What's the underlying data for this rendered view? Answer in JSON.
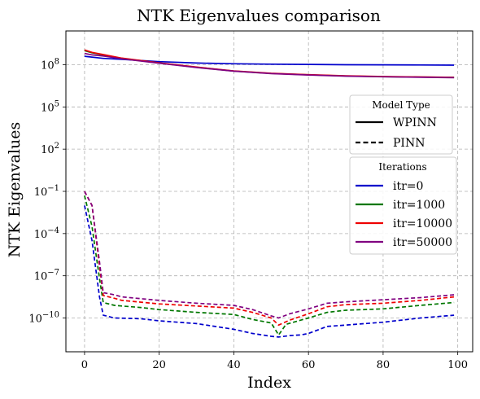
{
  "chart_data": {
    "type": "line",
    "title": "NTK Eigenvalues comparison",
    "xlabel": "Index",
    "ylabel": "NTK Eigenvalues",
    "xlim": [
      -5,
      104
    ],
    "ylim_log10": [
      -12.4,
      10.4
    ],
    "yscale": "log",
    "grid": true,
    "xticks": [
      0,
      20,
      40,
      60,
      80,
      100
    ],
    "yticks": [
      {
        "exp": 8,
        "label": "10^8"
      },
      {
        "exp": 5,
        "label": "10^5"
      },
      {
        "exp": 2,
        "label": "10^2"
      },
      {
        "exp": -1,
        "label": "10^−1"
      },
      {
        "exp": -4,
        "label": "10^−4"
      },
      {
        "exp": -7,
        "label": "10^−7"
      },
      {
        "exp": -10,
        "label": "10^−10"
      }
    ],
    "legends": [
      {
        "title": "Model Type",
        "placement": "right",
        "entries": [
          {
            "label": "WPINN",
            "style": "solid",
            "color": "#000000"
          },
          {
            "label": "PINN",
            "style": "dashed",
            "color": "#000000"
          }
        ]
      },
      {
        "title": "Iterations",
        "placement": "right",
        "entries": [
          {
            "label": "itr=0",
            "color": "#0000cc"
          },
          {
            "label": "itr=1000",
            "color": "#007700"
          },
          {
            "label": "itr=10000",
            "color": "#ee0000"
          },
          {
            "label": "itr=50000",
            "color": "#800080"
          }
        ]
      }
    ],
    "series": [
      {
        "name": "WPINN itr=0",
        "model": "WPINN",
        "iteration": "itr=0",
        "color": "#0000cc",
        "style": "solid",
        "x": [
          0,
          5,
          10,
          20,
          30,
          40,
          50,
          60,
          70,
          80,
          90,
          99
        ],
        "log10_y": [
          8.6,
          8.45,
          8.38,
          8.22,
          8.12,
          8.07,
          8.04,
          8.02,
          8.0,
          7.99,
          7.98,
          7.97
        ]
      },
      {
        "name": "WPINN itr=1000",
        "model": "WPINN",
        "iteration": "itr=1000",
        "color": "#007700",
        "style": "solid",
        "x": [
          0,
          2,
          5,
          10,
          20,
          30,
          40,
          50,
          60,
          70,
          80,
          90,
          99
        ],
        "log10_y": [
          9.0,
          8.85,
          8.7,
          8.45,
          8.12,
          7.82,
          7.55,
          7.38,
          7.28,
          7.2,
          7.15,
          7.12,
          7.1
        ]
      },
      {
        "name": "WPINN itr=10000",
        "model": "WPINN",
        "iteration": "itr=10000",
        "color": "#ee0000",
        "style": "solid",
        "x": [
          0,
          2,
          5,
          10,
          20,
          30,
          40,
          50,
          60,
          70,
          80,
          90,
          99
        ],
        "log10_y": [
          9.05,
          8.88,
          8.72,
          8.47,
          8.13,
          7.83,
          7.56,
          7.39,
          7.29,
          7.21,
          7.16,
          7.13,
          7.1
        ]
      },
      {
        "name": "WPINN itr=50000",
        "model": "WPINN",
        "iteration": "itr=50000",
        "color": "#800080",
        "style": "solid",
        "x": [
          0,
          2,
          5,
          10,
          20,
          30,
          40,
          50,
          60,
          70,
          80,
          90,
          99
        ],
        "log10_y": [
          8.8,
          8.7,
          8.62,
          8.42,
          8.1,
          7.8,
          7.54,
          7.37,
          7.27,
          7.19,
          7.14,
          7.11,
          7.08
        ]
      },
      {
        "name": "PINN itr=0",
        "model": "PINN",
        "iteration": "itr=0",
        "color": "#0000cc",
        "style": "dashed",
        "x": [
          0,
          2,
          4,
          5,
          8,
          15,
          20,
          30,
          40,
          45,
          50,
          52,
          55,
          58,
          60,
          65,
          70,
          80,
          90,
          99
        ],
        "log10_y": [
          -2.0,
          -4.5,
          -8.5,
          -9.8,
          -10.0,
          -10.05,
          -10.2,
          -10.4,
          -10.8,
          -11.1,
          -11.3,
          -11.35,
          -11.25,
          -11.2,
          -11.1,
          -10.6,
          -10.5,
          -10.3,
          -10.0,
          -9.8
        ]
      },
      {
        "name": "PINN itr=1000",
        "model": "PINN",
        "iteration": "itr=1000",
        "color": "#007700",
        "style": "dashed",
        "x": [
          0,
          2,
          4,
          5,
          8,
          10,
          15,
          20,
          30,
          40,
          45,
          50,
          52,
          54,
          56,
          60,
          65,
          70,
          80,
          90,
          99
        ],
        "log10_y": [
          -1.3,
          -3.5,
          -7.2,
          -8.9,
          -9.1,
          -9.15,
          -9.25,
          -9.4,
          -9.6,
          -9.75,
          -10.1,
          -10.35,
          -11.2,
          -10.45,
          -10.3,
          -10.0,
          -9.6,
          -9.45,
          -9.35,
          -9.1,
          -8.9
        ]
      },
      {
        "name": "PINN itr=10000",
        "model": "PINN",
        "iteration": "itr=10000",
        "color": "#ee0000",
        "style": "dashed",
        "x": [
          0,
          2,
          4,
          5,
          8,
          10,
          20,
          30,
          40,
          45,
          50,
          52,
          55,
          60,
          65,
          70,
          80,
          90,
          99
        ],
        "log10_y": [
          -1.0,
          -2.0,
          -6.3,
          -8.4,
          -8.6,
          -8.75,
          -9.0,
          -9.15,
          -9.3,
          -9.6,
          -10.0,
          -10.5,
          -10.15,
          -9.7,
          -9.2,
          -9.05,
          -8.95,
          -8.75,
          -8.5
        ]
      },
      {
        "name": "PINN itr=50000",
        "model": "PINN",
        "iteration": "itr=50000",
        "color": "#800080",
        "style": "dashed",
        "x": [
          0,
          2,
          4,
          5,
          8,
          10,
          20,
          30,
          40,
          45,
          50,
          52,
          55,
          60,
          65,
          70,
          80,
          90,
          99
        ],
        "log10_y": [
          -1.0,
          -2.0,
          -6.0,
          -8.2,
          -8.35,
          -8.5,
          -8.75,
          -8.95,
          -9.1,
          -9.4,
          -9.85,
          -10.0,
          -9.7,
          -9.35,
          -8.95,
          -8.85,
          -8.7,
          -8.55,
          -8.35
        ]
      }
    ]
  }
}
